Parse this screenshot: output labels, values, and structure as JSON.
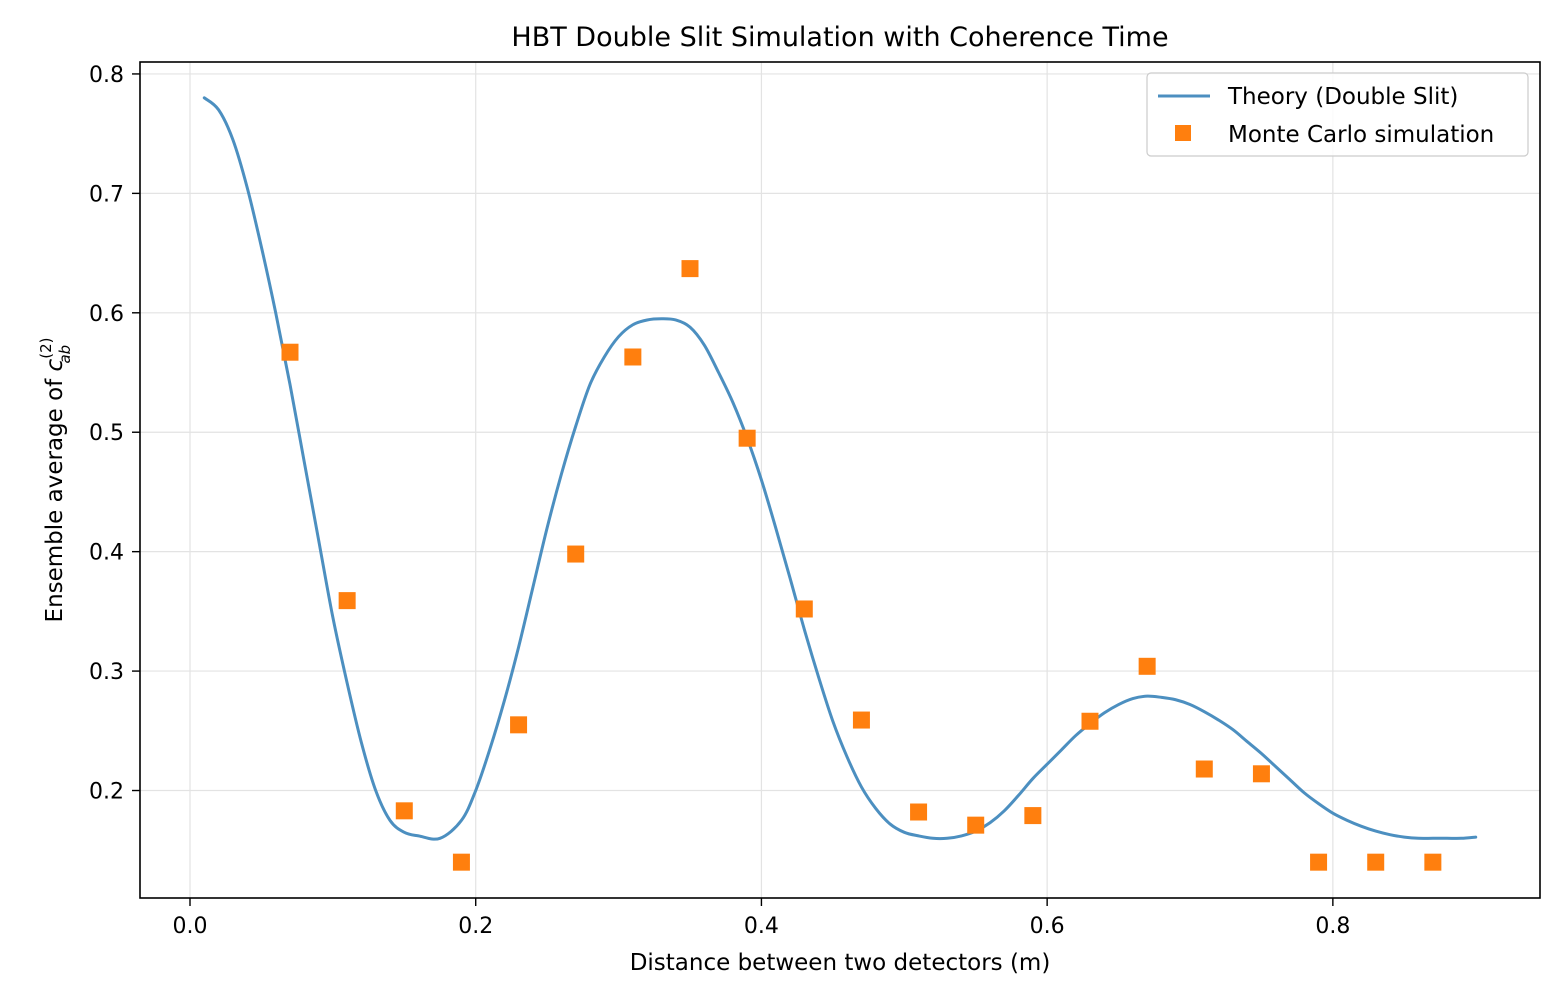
{
  "chart_data": {
    "type": "line",
    "title": "HBT Double Slit Simulation with Coherence Time",
    "xlabel": "Distance between two detectors (m)",
    "ylabel": {
      "prefix": "Ensemble average of ",
      "symbol": "c",
      "superscript": "(2)",
      "subscript": "ab"
    },
    "xlim": [
      -0.035,
      0.945
    ],
    "ylim": [
      0.11,
      0.81
    ],
    "x_ticks": [
      0.0,
      0.2,
      0.4,
      0.6,
      0.8
    ],
    "x_tick_labels": [
      "0.0",
      "0.2",
      "0.4",
      "0.6",
      "0.8"
    ],
    "y_ticks": [
      0.2,
      0.3,
      0.4,
      0.5,
      0.6,
      0.7,
      0.8
    ],
    "y_tick_labels": [
      "0.2",
      "0.3",
      "0.4",
      "0.5",
      "0.6",
      "0.7",
      "0.8"
    ],
    "grid": true,
    "legend_position": "upper right",
    "series": [
      {
        "name": "Theory (Double Slit)",
        "kind": "line",
        "color": "#4c8fc0",
        "x": [
          0.01,
          0.02,
          0.03,
          0.04,
          0.05,
          0.06,
          0.07,
          0.08,
          0.09,
          0.1,
          0.11,
          0.12,
          0.13,
          0.14,
          0.15,
          0.16,
          0.175,
          0.19,
          0.2,
          0.21,
          0.22,
          0.23,
          0.24,
          0.25,
          0.26,
          0.27,
          0.28,
          0.29,
          0.3,
          0.31,
          0.32,
          0.33,
          0.34,
          0.35,
          0.36,
          0.37,
          0.38,
          0.39,
          0.4,
          0.41,
          0.42,
          0.43,
          0.44,
          0.45,
          0.46,
          0.47,
          0.48,
          0.49,
          0.5,
          0.51,
          0.52,
          0.53,
          0.54,
          0.55,
          0.56,
          0.57,
          0.58,
          0.59,
          0.6,
          0.61,
          0.62,
          0.63,
          0.64,
          0.65,
          0.66,
          0.67,
          0.68,
          0.69,
          0.7,
          0.71,
          0.72,
          0.73,
          0.74,
          0.75,
          0.76,
          0.77,
          0.78,
          0.79,
          0.8,
          0.81,
          0.82,
          0.83,
          0.84,
          0.85,
          0.86,
          0.87,
          0.88,
          0.89,
          0.9
        ],
        "values": [
          0.78,
          0.77,
          0.745,
          0.705,
          0.655,
          0.6,
          0.54,
          0.475,
          0.41,
          0.345,
          0.29,
          0.24,
          0.2,
          0.175,
          0.165,
          0.162,
          0.16,
          0.175,
          0.2,
          0.235,
          0.275,
          0.32,
          0.37,
          0.42,
          0.465,
          0.505,
          0.54,
          0.563,
          0.58,
          0.59,
          0.594,
          0.595,
          0.594,
          0.588,
          0.573,
          0.55,
          0.525,
          0.495,
          0.46,
          0.42,
          0.378,
          0.335,
          0.295,
          0.258,
          0.228,
          0.203,
          0.185,
          0.172,
          0.165,
          0.162,
          0.16,
          0.16,
          0.162,
          0.166,
          0.173,
          0.183,
          0.196,
          0.21,
          0.222,
          0.234,
          0.246,
          0.256,
          0.265,
          0.272,
          0.277,
          0.279,
          0.278,
          0.276,
          0.272,
          0.266,
          0.259,
          0.251,
          0.241,
          0.231,
          0.22,
          0.209,
          0.198,
          0.189,
          0.181,
          0.175,
          0.17,
          0.166,
          0.163,
          0.161,
          0.16,
          0.16,
          0.16,
          0.16,
          0.161
        ]
      },
      {
        "name": "Monte Carlo simulation",
        "kind": "scatter",
        "marker": "square",
        "color": "#ff7f0e",
        "x": [
          0.07,
          0.11,
          0.15,
          0.19,
          0.23,
          0.27,
          0.31,
          0.35,
          0.39,
          0.43,
          0.47,
          0.51,
          0.55,
          0.59,
          0.63,
          0.67,
          0.71,
          0.75,
          0.79,
          0.83,
          0.87
        ],
        "values": [
          0.567,
          0.359,
          0.183,
          0.14,
          0.255,
          0.398,
          0.563,
          0.637,
          0.495,
          0.352,
          0.259,
          0.182,
          0.171,
          0.179,
          0.258,
          0.304,
          0.218,
          0.214,
          0.14,
          0.14,
          0.14
        ]
      }
    ]
  }
}
